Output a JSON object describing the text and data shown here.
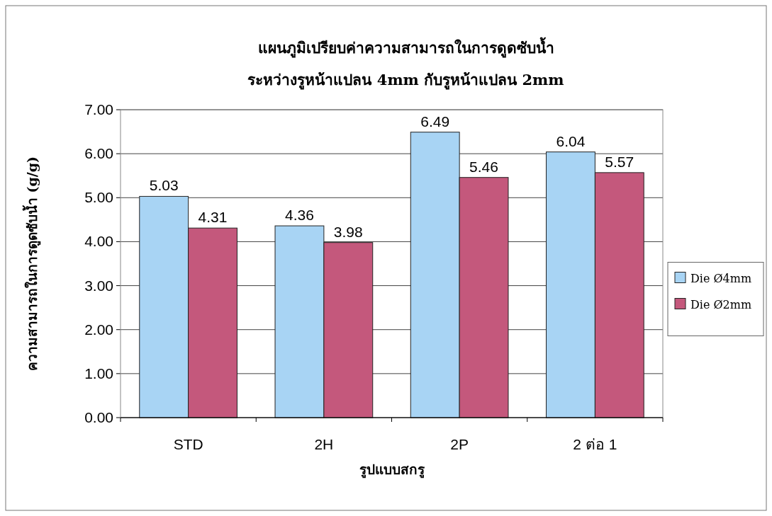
{
  "chart_data": {
    "type": "bar",
    "title": "แผนภูมิเปรียบค่าความสามารถในการดูดซับน้ำ",
    "subtitle": "ระหว่างรูหน้าแปลน 4mm กับรูหน้าแปลน 2mm",
    "xlabel": "รูปแบบสกรู",
    "ylabel": "ความสามารถในการดูดซับน้ำ (g/g)",
    "categories": [
      "STD",
      "2H",
      "2P",
      "2 ต่อ 1"
    ],
    "series": [
      {
        "name": "Die Ø4mm",
        "color": "#a8d4f4",
        "values": [
          5.03,
          4.36,
          6.49,
          6.04
        ]
      },
      {
        "name": "Die Ø2mm",
        "color": "#c4587c",
        "values": [
          4.31,
          3.98,
          5.46,
          5.57
        ]
      }
    ],
    "ylim": [
      0,
      7
    ],
    "yticks": [
      {
        "value": 0,
        "label": "0.00"
      },
      {
        "value": 1,
        "label": "1.00"
      },
      {
        "value": 2,
        "label": "2.00"
      },
      {
        "value": 3,
        "label": "3.00"
      },
      {
        "value": 4,
        "label": "4.00"
      },
      {
        "value": 5,
        "label": "5.00"
      },
      {
        "value": 6,
        "label": "6.00"
      },
      {
        "value": 7,
        "label": "7.00"
      }
    ],
    "grid": "y",
    "legend": "right",
    "data_labels": true
  }
}
